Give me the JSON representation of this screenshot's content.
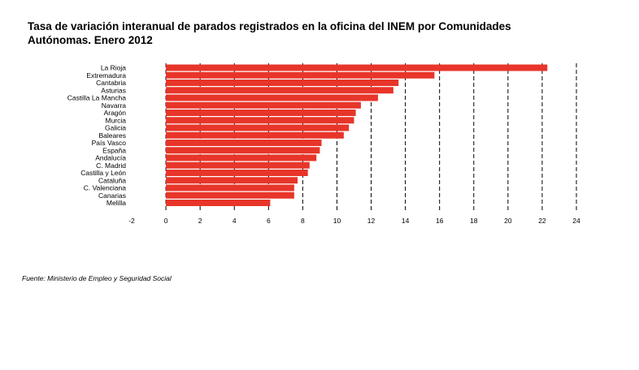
{
  "chart_data": {
    "type": "bar",
    "orientation": "horizontal",
    "title": "Tasa de variación interanual de parados registrados en la oficina del INEM por Comunidades Autónomas. Enero 2012",
    "categories": [
      "La Rioja",
      "Extremadura",
      "Cantabria",
      "Asturias",
      "Castilla La Mancha",
      "Navarra",
      "Aragón",
      "Murcia",
      "Galicia",
      "Baleares",
      "País Vasco",
      "España",
      "Andalucía",
      "C. Madrid",
      "Castilla y León",
      "Cataluña",
      "C. Valenciana",
      "Canarias",
      "Melilla"
    ],
    "values": [
      22.3,
      15.7,
      13.6,
      13.3,
      12.4,
      11.4,
      11.1,
      11.0,
      10.7,
      10.4,
      9.1,
      9.0,
      8.8,
      8.4,
      8.3,
      7.7,
      7.5,
      7.5,
      6.1
    ],
    "xlim": [
      -2,
      24
    ],
    "xticks": [
      "-2",
      "0",
      "2",
      "4",
      "6",
      "8",
      "10",
      "12",
      "14",
      "16",
      "18",
      "20",
      "22",
      "24"
    ],
    "bar_color": "#e8352a",
    "grid": "vertical dashed",
    "xlabel": "",
    "ylabel": ""
  },
  "footer": {
    "source": "Fuente: Ministerio de Empleo y Seguridad Social"
  }
}
